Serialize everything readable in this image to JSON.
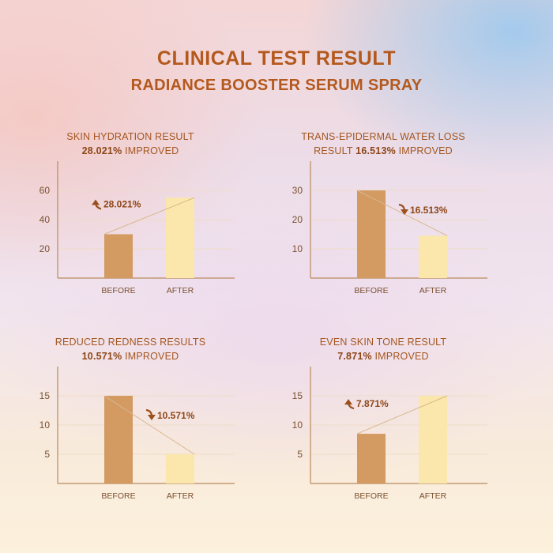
{
  "header": {
    "title": "CLINICAL TEST RESULT",
    "subtitle": "RADIANCE BOOSTER SERUM SPRAY"
  },
  "colors": {
    "title": "#b4591d",
    "before_bar": "#d39a62",
    "after_bar": "#fbe7ab",
    "axis": "#b98a5e",
    "grid": "#eedcc8"
  },
  "chart_data": [
    {
      "type": "bar",
      "heading_line1": "SKIN HYDRATION RESULT",
      "heading_value": "28.021%",
      "heading_suffix": "IMPROVED",
      "categories": [
        "BEFORE",
        "AFTER"
      ],
      "values": [
        30,
        55
      ],
      "yticks": [
        20,
        40,
        60
      ],
      "ylim": [
        0,
        80
      ],
      "delta_label": "28.021%",
      "direction": "up"
    },
    {
      "type": "bar",
      "heading_line1": "TRANS-EPIDERMAL WATER LOSS",
      "heading_prefix": "RESULT",
      "heading_value": "16.513%",
      "heading_suffix": "IMPROVED",
      "categories": [
        "BEFORE",
        "AFTER"
      ],
      "values": [
        30,
        14.5
      ],
      "yticks": [
        10,
        20,
        30
      ],
      "ylim": [
        0,
        40
      ],
      "delta_label": "16.513%",
      "direction": "down"
    },
    {
      "type": "bar",
      "heading_line1": "REDUCED REDNESS RESULTS",
      "heading_value": "10.571%",
      "heading_suffix": "IMPROVED",
      "categories": [
        "BEFORE",
        "AFTER"
      ],
      "values": [
        15,
        5
      ],
      "yticks": [
        5,
        10,
        15
      ],
      "ylim": [
        0,
        20
      ],
      "delta_label": "10.571%",
      "direction": "down"
    },
    {
      "type": "bar",
      "heading_line1": "EVEN SKIN TONE RESULT",
      "heading_value": "7.871%",
      "heading_suffix": "IMPROVED",
      "categories": [
        "BEFORE",
        "AFTER"
      ],
      "values": [
        8.5,
        15
      ],
      "yticks": [
        5,
        10,
        15
      ],
      "ylim": [
        0,
        20
      ],
      "delta_label": "7.871%",
      "direction": "up"
    }
  ]
}
